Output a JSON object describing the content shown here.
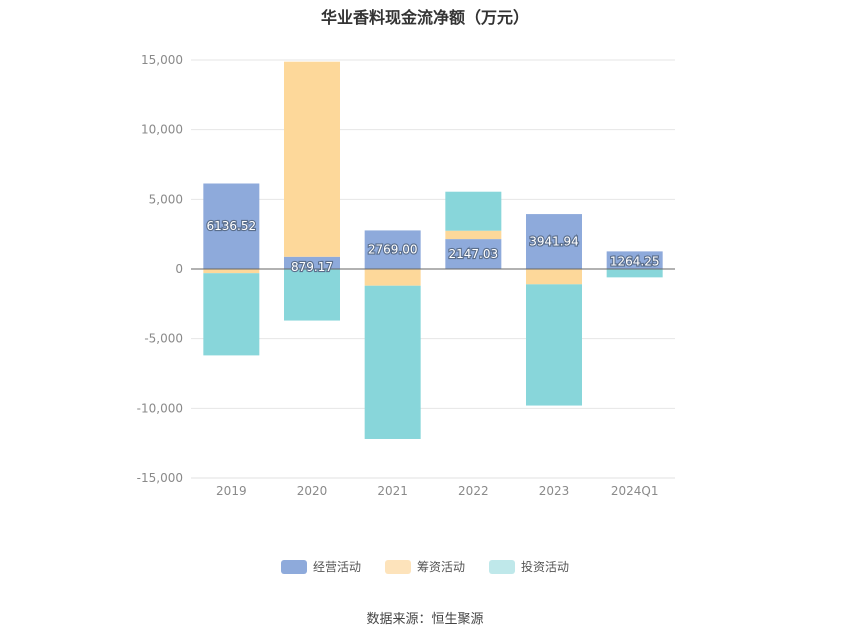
{
  "chart_data": {
    "type": "bar",
    "stacked": true,
    "title": "华业香料现金流净额（万元）",
    "categories": [
      "2019",
      "2020",
      "2021",
      "2022",
      "2023",
      "2024Q1"
    ],
    "ylim": [
      -15000,
      15000
    ],
    "yticks": [
      15000,
      10000,
      5000,
      0,
      -5000,
      -10000,
      -15000
    ],
    "ytick_labels": [
      "15,000",
      "10,000",
      "5,000",
      "0",
      "-5,000",
      "-10,000",
      "-15,000"
    ],
    "grid": true,
    "legend_position": "bottom",
    "series": [
      {
        "name": "经营活动",
        "color": "#8eaadb",
        "values": [
          6136.52,
          879.17,
          2769.0,
          2147.03,
          3941.94,
          1264.25
        ]
      },
      {
        "name": "筹资活动",
        "color": "#fdd89a",
        "values": [
          -300,
          14000,
          -1200,
          600,
          -1100,
          0
        ]
      },
      {
        "name": "投资活动",
        "color": "#88d6da",
        "values": [
          -5900,
          -3700,
          -11000,
          2800,
          -8700,
          -600
        ]
      }
    ],
    "data_labels": [
      "6136.52",
      "879.17",
      "2769.00",
      "2147.03",
      "3941.94",
      "1264.25"
    ]
  },
  "legend": {
    "items": [
      {
        "label": "经营活动",
        "color": "#8eaadb"
      },
      {
        "label": "筹资活动",
        "color": "#fde3bb"
      },
      {
        "label": "投资活动",
        "color": "#bfe8ea"
      }
    ]
  },
  "footer": {
    "source": "数据来源：恒生聚源"
  }
}
